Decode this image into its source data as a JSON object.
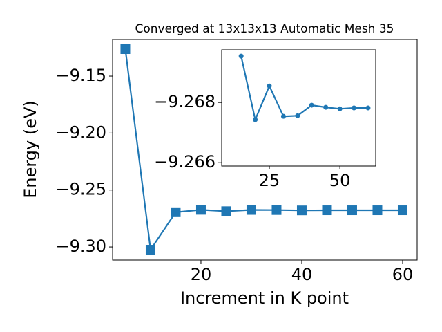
{
  "chart_data": [
    {
      "type": "line",
      "title": "Converged at 13x13x13 Automatic Mesh 35",
      "xlabel": "Increment in K point",
      "ylabel": "Energy (eV)",
      "x": [
        5,
        10,
        15,
        20,
        25,
        30,
        35,
        40,
        45,
        50,
        55,
        60
      ],
      "series": [
        {
          "color": "#1f77b4",
          "marker": "square",
          "values": [
            -9.1263,
            -9.3024,
            -9.2695,
            -9.2674,
            -9.2686,
            -9.2675,
            -9.2676,
            -9.2679,
            -9.2678,
            -9.2678,
            -9.2678,
            -9.2678
          ]
        }
      ],
      "xlim": [
        2.47,
        62.88
      ],
      "ylim": [
        -9.3115,
        -9.1178
      ],
      "xticks": [
        20,
        40,
        60
      ],
      "yticks": [
        {
          "value": -9.15,
          "label": "−9.15"
        },
        {
          "value": -9.2,
          "label": "−9.20"
        },
        {
          "value": -9.25,
          "label": "−9.25"
        },
        {
          "value": -9.3,
          "label": "−9.30"
        }
      ]
    },
    {
      "type": "line",
      "x": [
        15,
        20,
        25,
        30,
        35,
        40,
        45,
        50,
        55,
        60
      ],
      "series": [
        {
          "color": "#1f77b4",
          "marker": "circle",
          "values": [
            -9.26954,
            -9.26743,
            -9.26855,
            -9.26754,
            -9.26756,
            -9.26791,
            -9.26784,
            -9.26779,
            -9.26782,
            -9.26782
          ]
        }
      ],
      "xlim": [
        8.1,
        62.7
      ],
      "ylim": [
        -9.26589,
        -9.26975
      ],
      "xticks": [
        25,
        50
      ],
      "yticks": [
        {
          "value": -9.268,
          "label": "−9.268"
        },
        {
          "value": -9.266,
          "label": "−9.266"
        }
      ]
    }
  ]
}
